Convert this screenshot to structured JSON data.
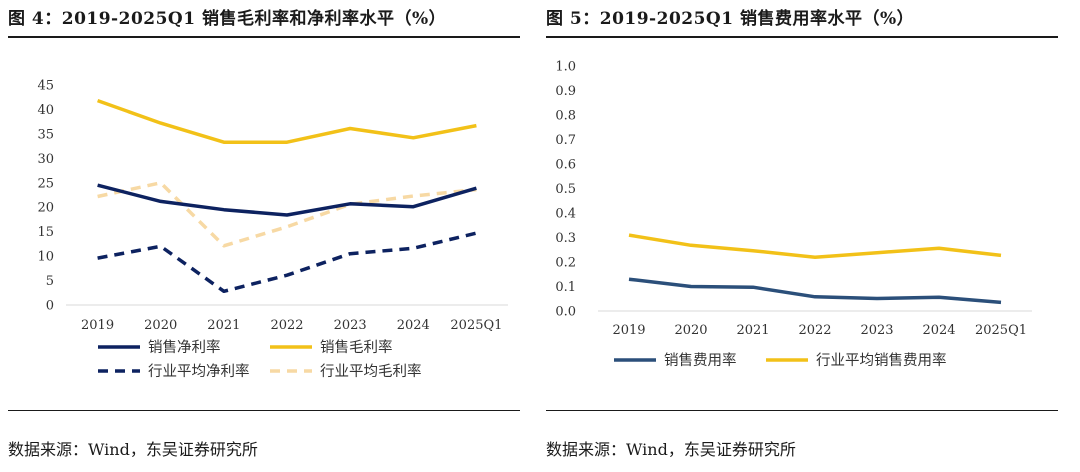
{
  "left": {
    "title": "图 4：2019-2025Q1 销售毛利率和净利率水平（%）",
    "source": "数据来源：Wind，东吴证券研究所"
  },
  "right": {
    "title": "图 5：2019-2025Q1 销售费用率水平（%）",
    "source": "数据来源：Wind，东吴证券研究所"
  },
  "chart_data": [
    {
      "type": "line",
      "title": "2019-2025Q1 销售毛利率和净利率水平（%）",
      "categories": [
        "2019",
        "2020",
        "2021",
        "2022",
        "2023",
        "2024",
        "2025Q1"
      ],
      "ylim": [
        0,
        45
      ],
      "yticks": [
        0,
        5,
        10,
        15,
        20,
        25,
        30,
        35,
        40,
        45
      ],
      "grid": false,
      "legend": "bottom",
      "series": [
        {
          "name": "销售净利率",
          "values": [
            24.5,
            21.2,
            19.5,
            18.4,
            20.7,
            20.1,
            23.9
          ],
          "color": "#0d2260",
          "style": "solid"
        },
        {
          "name": "销售毛利率",
          "values": [
            41.8,
            37.2,
            33.3,
            33.3,
            36.1,
            34.2,
            36.7
          ],
          "color": "#f2c118",
          "style": "solid"
        },
        {
          "name": "行业平均净利率",
          "values": [
            9.6,
            12.0,
            2.8,
            6.1,
            10.5,
            11.6,
            14.7
          ],
          "color": "#0d2260",
          "style": "dashed"
        },
        {
          "name": "行业平均毛利率",
          "values": [
            22.2,
            25.0,
            12.1,
            16.0,
            20.6,
            22.3,
            23.6
          ],
          "color": "#f7d9a4",
          "style": "dashed"
        }
      ]
    },
    {
      "type": "line",
      "title": "2019-2025Q1 销售费用率水平（%）",
      "categories": [
        "2019",
        "2020",
        "2021",
        "2022",
        "2023",
        "2024",
        "2025Q1"
      ],
      "ylim": [
        0,
        1.0
      ],
      "yticks": [
        "0.0",
        "0.1",
        "0.2",
        "0.3",
        "0.4",
        "0.5",
        "0.6",
        "0.7",
        "0.8",
        "0.9",
        "1.0"
      ],
      "grid": false,
      "legend": "bottom",
      "series": [
        {
          "name": "销售费用率",
          "values": [
            0.13,
            0.1,
            0.097,
            0.058,
            0.051,
            0.056,
            0.035
          ],
          "color": "#2b4f7a",
          "style": "solid"
        },
        {
          "name": "行业平均销售费用率",
          "values": [
            0.31,
            0.268,
            0.246,
            0.219,
            0.238,
            0.256,
            0.227
          ],
          "color": "#f2c118",
          "style": "solid"
        }
      ]
    }
  ]
}
